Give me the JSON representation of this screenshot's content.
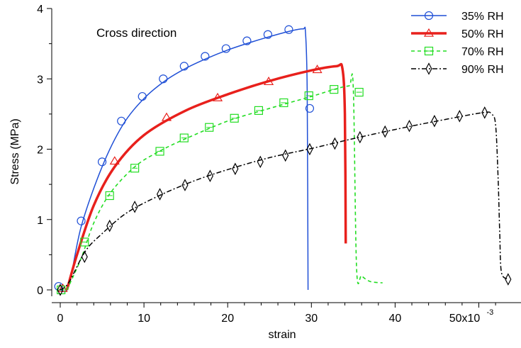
{
  "chart_data": {
    "type": "line",
    "annotation": "Cross direction",
    "xlabel": "strain",
    "ylabel": "Stress (MPa)",
    "x_tick_labels": [
      "0",
      "10",
      "20",
      "30",
      "40",
      "50x10"
    ],
    "x_exponent_label": "-3",
    "y_tick_labels": [
      "0",
      "1",
      "2",
      "3",
      "4"
    ],
    "xlim": [
      -0.001,
      0.0535
    ],
    "ylim": [
      -0.07,
      4.0
    ],
    "legend_position": "top-right",
    "series": [
      {
        "name": "35% RH",
        "color": "#1f4fd6",
        "style": "solid",
        "marker": "circle",
        "points": [
          [
            0.0,
            0.0
          ],
          [
            0.001,
            0.05
          ],
          [
            0.0025,
            0.9
          ],
          [
            0.005,
            1.75
          ],
          [
            0.0075,
            2.35
          ],
          [
            0.01,
            2.72
          ],
          [
            0.0125,
            2.97
          ],
          [
            0.015,
            3.15
          ],
          [
            0.0175,
            3.29
          ],
          [
            0.02,
            3.41
          ],
          [
            0.0225,
            3.51
          ],
          [
            0.025,
            3.6
          ],
          [
            0.0275,
            3.68
          ],
          [
            0.029,
            3.71
          ],
          [
            0.0293,
            3.65
          ],
          [
            0.0295,
            2.8
          ],
          [
            0.0296,
            0.0
          ]
        ],
        "markers": [
          [
            -0.0002,
            0.05
          ],
          [
            0.0025,
            0.98
          ],
          [
            0.005,
            1.82
          ],
          [
            0.0073,
            2.4
          ],
          [
            0.0098,
            2.75
          ],
          [
            0.0123,
            3.0
          ],
          [
            0.0148,
            3.18
          ],
          [
            0.0173,
            3.32
          ],
          [
            0.0198,
            3.43
          ],
          [
            0.0223,
            3.54
          ],
          [
            0.0248,
            3.63
          ],
          [
            0.0273,
            3.7
          ],
          [
            0.0298,
            2.58
          ]
        ]
      },
      {
        "name": "50% RH",
        "color": "#e8201c",
        "style": "solid-thick",
        "marker": "triangle",
        "points": [
          [
            0.0008,
            0.0
          ],
          [
            0.002,
            0.5
          ],
          [
            0.004,
            1.2
          ],
          [
            0.0065,
            1.75
          ],
          [
            0.01,
            2.2
          ],
          [
            0.015,
            2.55
          ],
          [
            0.02,
            2.78
          ],
          [
            0.025,
            2.97
          ],
          [
            0.03,
            3.12
          ],
          [
            0.033,
            3.18
          ],
          [
            0.0337,
            3.15
          ],
          [
            0.034,
            2.5
          ],
          [
            0.0341,
            0.66
          ]
        ],
        "markers": [
          [
            0.0003,
            0.02
          ],
          [
            0.0065,
            1.83
          ],
          [
            0.0127,
            2.45
          ],
          [
            0.0188,
            2.73
          ],
          [
            0.0249,
            2.96
          ],
          [
            0.0307,
            3.13
          ]
        ]
      },
      {
        "name": "70% RH",
        "color": "#22dd22",
        "style": "dashed",
        "marker": "square",
        "points": [
          [
            0.0008,
            0.0
          ],
          [
            0.0025,
            0.45
          ],
          [
            0.004,
            0.95
          ],
          [
            0.006,
            1.38
          ],
          [
            0.009,
            1.76
          ],
          [
            0.012,
            1.98
          ],
          [
            0.015,
            2.15
          ],
          [
            0.02,
            2.4
          ],
          [
            0.025,
            2.58
          ],
          [
            0.03,
            2.75
          ],
          [
            0.033,
            2.86
          ],
          [
            0.0345,
            2.9
          ],
          [
            0.035,
            2.88
          ],
          [
            0.0354,
            0.3
          ],
          [
            0.036,
            0.2
          ],
          [
            0.037,
            0.12
          ],
          [
            0.0385,
            0.1
          ]
        ],
        "markers": [
          [
            0.0001,
            0.0
          ],
          [
            0.0029,
            0.68
          ],
          [
            0.0059,
            1.34
          ],
          [
            0.0089,
            1.73
          ],
          [
            0.0119,
            1.97
          ],
          [
            0.0148,
            2.16
          ],
          [
            0.0178,
            2.31
          ],
          [
            0.0208,
            2.44
          ],
          [
            0.0237,
            2.55
          ],
          [
            0.0267,
            2.66
          ],
          [
            0.0297,
            2.76
          ],
          [
            0.0327,
            2.85
          ],
          [
            0.0357,
            2.81
          ]
        ]
      },
      {
        "name": "90% RH",
        "color": "#000000",
        "style": "dash-dot",
        "marker": "diamond",
        "points": [
          [
            0.0,
            0.0
          ],
          [
            0.001,
            0.1
          ],
          [
            0.003,
            0.55
          ],
          [
            0.005,
            0.8
          ],
          [
            0.008,
            1.1
          ],
          [
            0.012,
            1.35
          ],
          [
            0.016,
            1.55
          ],
          [
            0.02,
            1.71
          ],
          [
            0.025,
            1.88
          ],
          [
            0.03,
            2.01
          ],
          [
            0.035,
            2.15
          ],
          [
            0.04,
            2.28
          ],
          [
            0.045,
            2.4
          ],
          [
            0.0505,
            2.52
          ],
          [
            0.0515,
            2.5
          ],
          [
            0.052,
            2.35
          ],
          [
            0.0523,
            1.6
          ],
          [
            0.0525,
            0.8
          ],
          [
            0.0527,
            0.25
          ],
          [
            0.0535,
            0.15
          ]
        ],
        "markers": [
          [
            0.0,
            0.0
          ],
          [
            0.0029,
            0.47
          ],
          [
            0.0059,
            0.91
          ],
          [
            0.0089,
            1.18
          ],
          [
            0.0119,
            1.36
          ],
          [
            0.0149,
            1.49
          ],
          [
            0.0179,
            1.62
          ],
          [
            0.0209,
            1.72
          ],
          [
            0.0239,
            1.82
          ],
          [
            0.0269,
            1.91
          ],
          [
            0.0298,
            2.0
          ],
          [
            0.0328,
            2.08
          ],
          [
            0.0358,
            2.17
          ],
          [
            0.0388,
            2.25
          ],
          [
            0.0417,
            2.33
          ],
          [
            0.0447,
            2.4
          ],
          [
            0.0477,
            2.47
          ],
          [
            0.0507,
            2.52
          ],
          [
            0.0535,
            0.15
          ]
        ]
      }
    ]
  }
}
